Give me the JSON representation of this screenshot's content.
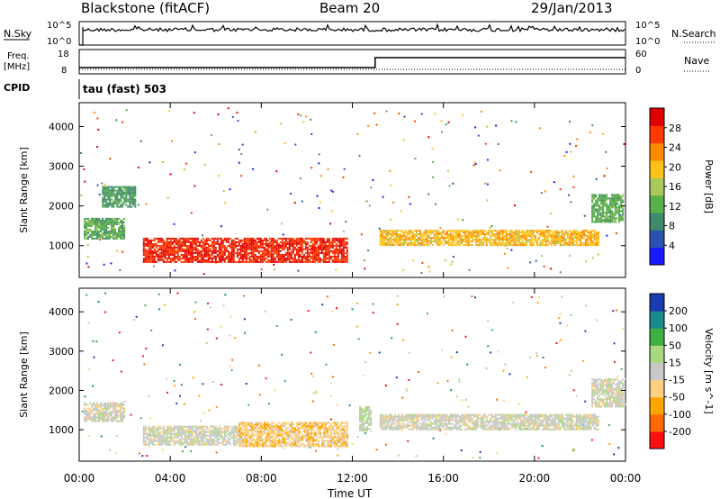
{
  "header": {
    "station": "Blackstone (fitACF)",
    "beam": "Beam 20",
    "date": "29/Jan/2013"
  },
  "strip": {
    "nsky_label": "N.Sky",
    "nsky_ticks": [
      "10^5",
      "10^0"
    ],
    "nsearch_label": "N.Search",
    "nsearch_ticks": [
      "10^5",
      "10^0"
    ],
    "freq_label_1": "Freq.",
    "freq_label_2": "[MHz]",
    "freq_ticks": [
      "18",
      "8"
    ],
    "nave_label": "Nave",
    "nave_ticks": [
      "60",
      "0"
    ],
    "cpid_label": "CPID",
    "cpid_value": "tau (fast) 503"
  },
  "colors": {
    "power_scale": [
      "#1a1aff",
      "#2a52b0",
      "#3f8a6a",
      "#5ab04a",
      "#a8c85a",
      "#ffc21a",
      "#ff8a00",
      "#ff3a00",
      "#e00000"
    ],
    "velocity_scale": [
      "#ff1010",
      "#ff6a00",
      "#ffa500",
      "#ffd080",
      "#c8c8c8",
      "#a8d880",
      "#40b040",
      "#1a8a8a",
      "#1a3ab0"
    ]
  },
  "chart_data": [
    {
      "type": "heatmap",
      "title": "",
      "xlabel": "Time UT",
      "ylabel": "Slant Range [km]",
      "x_ticks": [
        "00:00",
        "04:00",
        "08:00",
        "12:00",
        "16:00",
        "20:00",
        "00:00"
      ],
      "y_ticks": [
        "1000",
        "2000",
        "3000",
        "4000"
      ],
      "xlim": [
        0,
        24
      ],
      "ylim": [
        200,
        4600
      ],
      "colorbar": {
        "label": "Power [dB]",
        "ticks": [
          "4",
          "8",
          "12",
          "16",
          "20",
          "24",
          "28"
        ],
        "range": [
          0,
          32
        ]
      },
      "regions": [
        {
          "t0": 2.8,
          "t1": 11.8,
          "r0": 600,
          "r1": 1200,
          "value": 28
        },
        {
          "t0": 13.2,
          "t1": 22.8,
          "r0": 1000,
          "r1": 1400,
          "value": 20
        },
        {
          "t0": 0.2,
          "t1": 2.0,
          "r0": 1200,
          "r1": 1700,
          "value": 12
        },
        {
          "t0": 1.0,
          "t1": 2.5,
          "r0": 2000,
          "r1": 2500,
          "value": 10
        },
        {
          "t0": 22.5,
          "t1": 23.9,
          "r0": 1600,
          "r1": 2300,
          "value": 12
        }
      ]
    },
    {
      "type": "heatmap",
      "title": "",
      "xlabel": "Time UT",
      "ylabel": "Slant Range [km]",
      "x_ticks": [
        "00:00",
        "04:00",
        "08:00",
        "12:00",
        "16:00",
        "20:00",
        "00:00"
      ],
      "y_ticks": [
        "1000",
        "2000",
        "3000",
        "4000"
      ],
      "xlim": [
        0,
        24
      ],
      "ylim": [
        200,
        4600
      ],
      "colorbar": {
        "label": "Velocity [m s^-1]",
        "ticks": [
          "-200",
          "-100",
          "-50",
          "-15",
          "15",
          "50",
          "100",
          "200"
        ],
        "range": [
          -250,
          250
        ]
      },
      "regions": [
        {
          "t0": 2.8,
          "t1": 7.0,
          "r0": 600,
          "r1": 1100,
          "value": 0
        },
        {
          "t0": 7.0,
          "t1": 11.8,
          "r0": 600,
          "r1": 1200,
          "value": -60
        },
        {
          "t0": 12.3,
          "t1": 12.8,
          "r0": 1000,
          "r1": 1600,
          "value": 40
        },
        {
          "t0": 13.2,
          "t1": 22.8,
          "r0": 1000,
          "r1": 1400,
          "value": 0
        },
        {
          "t0": 0.2,
          "t1": 2.0,
          "r0": 1200,
          "r1": 1700,
          "value": 0
        },
        {
          "t0": 22.5,
          "t1": 23.9,
          "r0": 1600,
          "r1": 2300,
          "value": 0
        }
      ]
    }
  ]
}
